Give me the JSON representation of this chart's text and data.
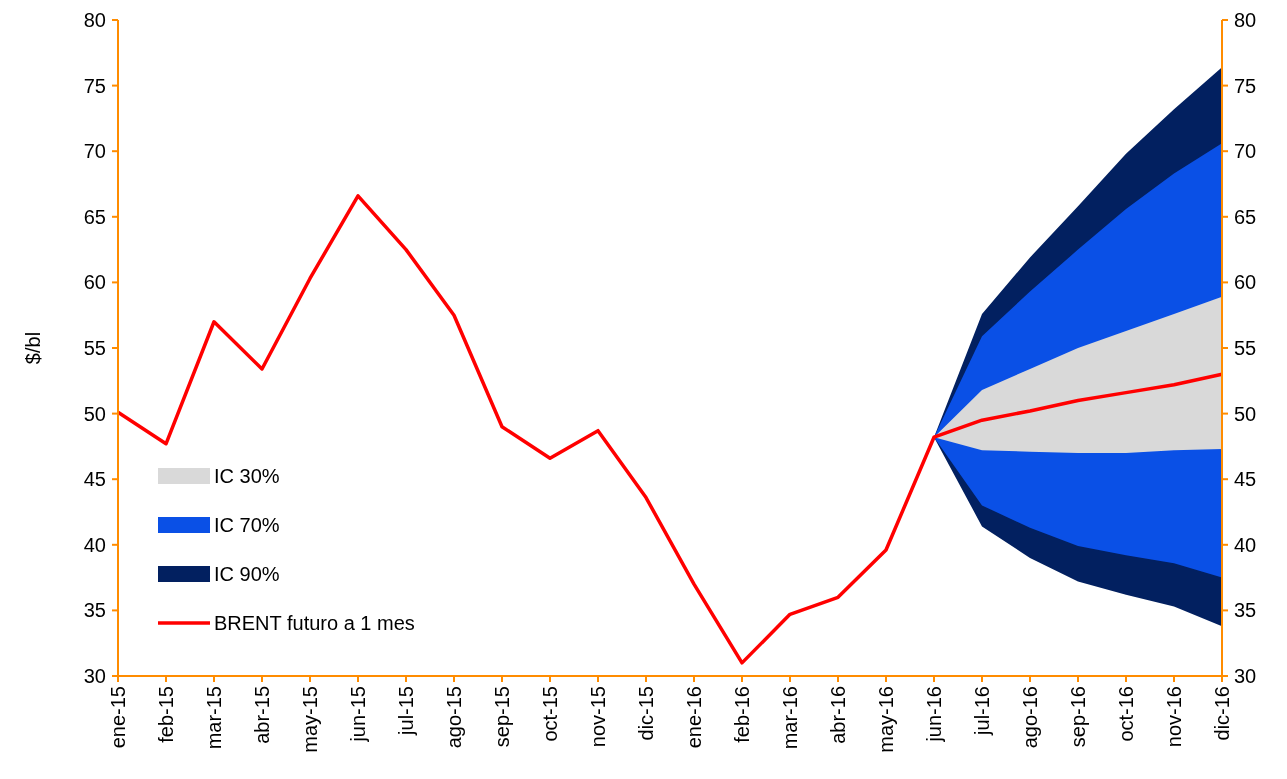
{
  "chart_data": {
    "type": "line",
    "ylabel": "$/bl",
    "categories": [
      "ene-15",
      "feb-15",
      "mar-15",
      "abr-15",
      "may-15",
      "jun-15",
      "jul-15",
      "ago-15",
      "sep-15",
      "oct-15",
      "nov-15",
      "dic-15",
      "ene-16",
      "feb-16",
      "mar-16",
      "abr-16",
      "may-16",
      "jun-16",
      "jul-16",
      "ago-16",
      "sep-16",
      "oct-16",
      "nov-16",
      "dic-16"
    ],
    "series": [
      {
        "name": "IC 30%",
        "type": "area",
        "color": "#d9d9d9",
        "values": [
          null,
          null,
          null,
          null,
          null,
          null,
          null,
          null,
          null,
          null,
          null,
          null,
          null,
          null,
          null,
          null,
          null,
          null,
          null,
          null,
          null,
          null,
          null,
          null
        ],
        "lower": [
          null,
          null,
          null,
          null,
          null,
          null,
          null,
          null,
          null,
          null,
          null,
          null,
          null,
          null,
          null,
          null,
          null,
          48.2,
          47.2,
          47.1,
          47.0,
          47.0,
          47.2,
          47.3
        ],
        "upper": [
          null,
          null,
          null,
          null,
          null,
          null,
          null,
          null,
          null,
          null,
          null,
          null,
          null,
          null,
          null,
          null,
          null,
          48.2,
          51.8,
          53.4,
          55.0,
          56.3,
          57.6,
          58.9
        ]
      },
      {
        "name": "IC 70%",
        "type": "area",
        "color": "#0a50e6",
        "values": [
          null,
          null,
          null,
          null,
          null,
          null,
          null,
          null,
          null,
          null,
          null,
          null,
          null,
          null,
          null,
          null,
          null,
          null,
          null,
          null,
          null,
          null,
          null,
          null
        ],
        "lower": [
          null,
          null,
          null,
          null,
          null,
          null,
          null,
          null,
          null,
          null,
          null,
          null,
          null,
          null,
          null,
          null,
          null,
          48.2,
          43.0,
          41.3,
          39.9,
          39.2,
          38.6,
          37.5
        ],
        "upper": [
          null,
          null,
          null,
          null,
          null,
          null,
          null,
          null,
          null,
          null,
          null,
          null,
          null,
          null,
          null,
          null,
          null,
          48.2,
          55.9,
          59.3,
          62.5,
          65.6,
          68.3,
          70.6
        ]
      },
      {
        "name": "IC 90%",
        "type": "area",
        "color": "#022060",
        "values": [
          null,
          null,
          null,
          null,
          null,
          null,
          null,
          null,
          null,
          null,
          null,
          null,
          null,
          null,
          null,
          null,
          null,
          null,
          null,
          null,
          null,
          null,
          null,
          null
        ],
        "lower": [
          null,
          null,
          null,
          null,
          null,
          null,
          null,
          null,
          null,
          null,
          null,
          null,
          null,
          null,
          null,
          null,
          null,
          48.2,
          41.4,
          39.0,
          37.2,
          36.2,
          35.3,
          33.8
        ],
        "upper": [
          null,
          null,
          null,
          null,
          null,
          null,
          null,
          null,
          null,
          null,
          null,
          null,
          null,
          null,
          null,
          null,
          null,
          48.2,
          57.6,
          61.9,
          65.8,
          69.8,
          73.2,
          76.4
        ]
      },
      {
        "name": "BRENT futuro a 1 mes",
        "color": "#ff0000",
        "values": [
          50.1,
          47.7,
          57.0,
          53.4,
          60.3,
          66.6,
          62.5,
          57.5,
          49.0,
          46.6,
          48.7,
          43.6,
          37.0,
          31.0,
          34.7,
          36.0,
          39.6,
          48.2,
          49.5,
          50.2,
          51.0,
          51.6,
          52.2,
          53.0
        ]
      }
    ],
    "ylim": [
      30,
      80
    ],
    "yticks": [
      30,
      35,
      40,
      45,
      50,
      55,
      60,
      65,
      70,
      75,
      80
    ],
    "y2lim": [
      30,
      80
    ],
    "y2ticks": [
      30,
      35,
      40,
      45,
      50,
      55,
      60,
      65,
      70,
      75,
      80
    ],
    "grid": false,
    "legend": "bottom left",
    "line_style": "solid",
    "marker": "none"
  }
}
